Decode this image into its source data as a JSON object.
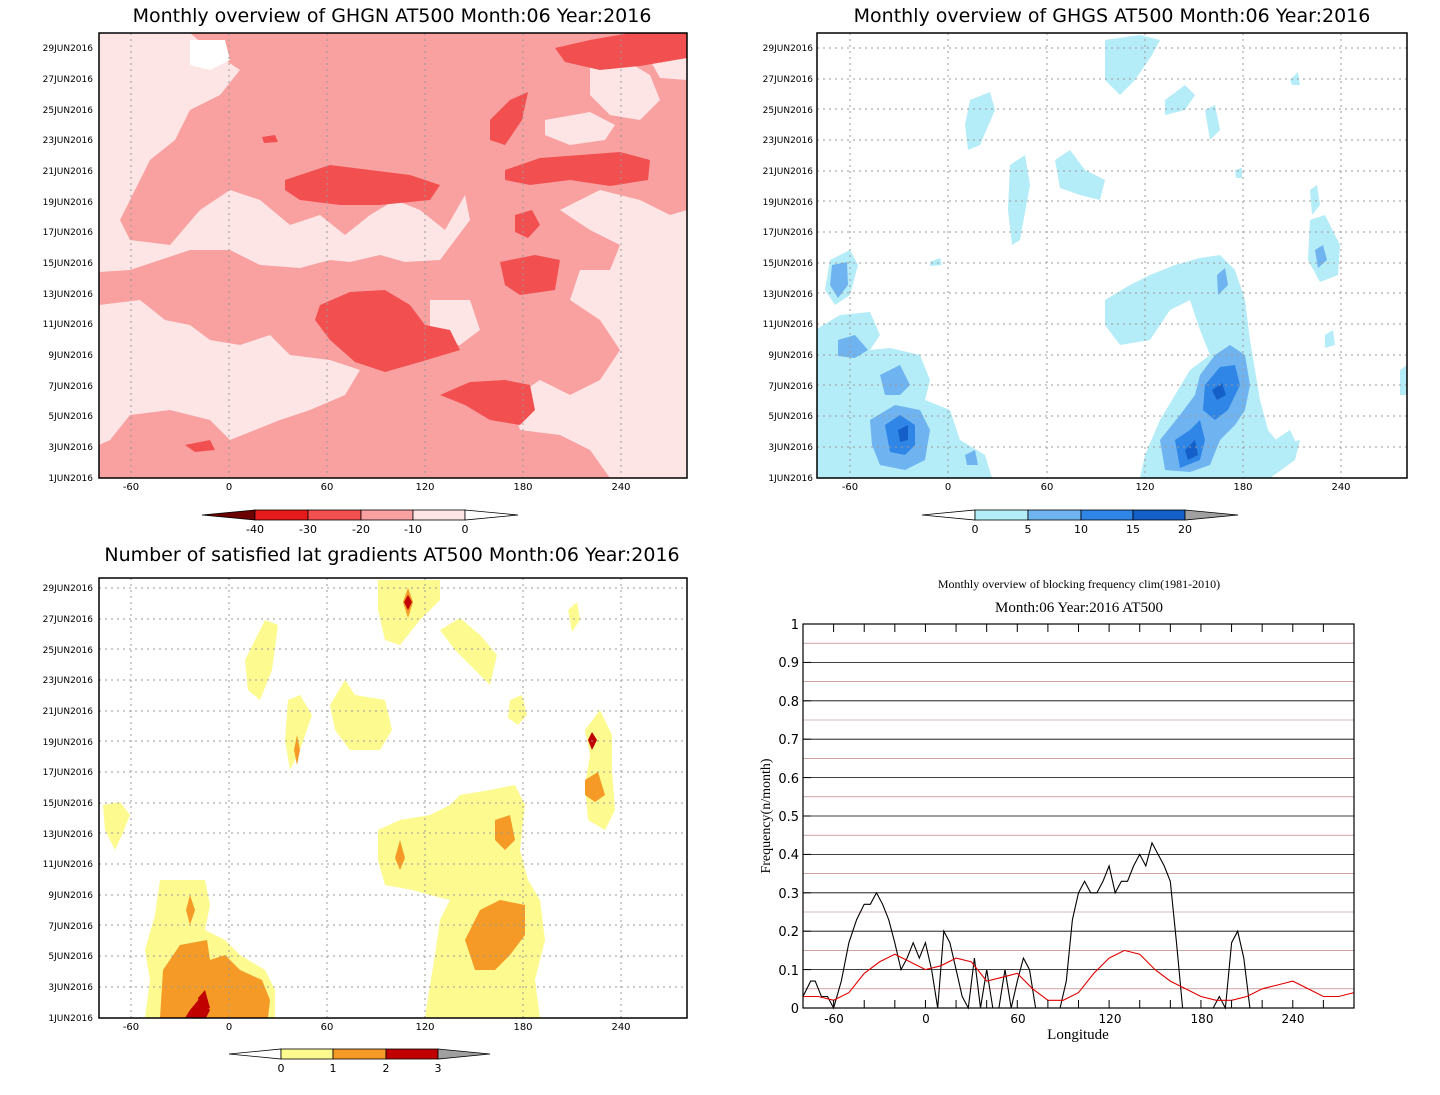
{
  "panels": {
    "ghgn": {
      "title": "Monthly overview of GHGN AT500 Month:06 Year:2016",
      "x_ticks": [
        "-60",
        "0",
        "60",
        "120",
        "180",
        "240"
      ],
      "y_ticks": [
        "1JUN2016",
        "3JUN2016",
        "5JUN2016",
        "7JUN2016",
        "9JUN2016",
        "11JUN2016",
        "13JUN2016",
        "15JUN2016",
        "17JUN2016",
        "19JUN2016",
        "21JUN2016",
        "23JUN2016",
        "25JUN2016",
        "27JUN2016",
        "29JUN2016"
      ],
      "colorbar": {
        "labels": [
          "-40",
          "-30",
          "-20",
          "-10",
          "0"
        ],
        "colors": [
          "#6b0000",
          "#e61a1a",
          "#f25050",
          "#f9a0a0",
          "#fde5e5"
        ]
      }
    },
    "ghgs": {
      "title": "Monthly overview of GHGS AT500 Month:06 Year:2016",
      "x_ticks": [
        "-60",
        "0",
        "60",
        "120",
        "180",
        "240"
      ],
      "y_ticks": [
        "1JUN2016",
        "3JUN2016",
        "5JUN2016",
        "7JUN2016",
        "9JUN2016",
        "11JUN2016",
        "13JUN2016",
        "15JUN2016",
        "17JUN2016",
        "19JUN2016",
        "21JUN2016",
        "23JUN2016",
        "25JUN2016",
        "27JUN2016",
        "29JUN2016"
      ],
      "colorbar": {
        "labels": [
          "0",
          "5",
          "10",
          "15",
          "20"
        ],
        "colors": [
          "#b4ecf8",
          "#6fb4f0",
          "#2f86e6",
          "#1560c8",
          "#a0a0a0"
        ]
      }
    },
    "gradients": {
      "title": "Number of satisfied lat gradients AT500 Month:06 Year:2016",
      "x_ticks": [
        "-60",
        "0",
        "60",
        "120",
        "180",
        "240"
      ],
      "y_ticks": [
        "1JUN2016",
        "3JUN2016",
        "5JUN2016",
        "7JUN2016",
        "9JUN2016",
        "11JUN2016",
        "13JUN2016",
        "15JUN2016",
        "17JUN2016",
        "19JUN2016",
        "21JUN2016",
        "23JUN2016",
        "25JUN2016",
        "27JUN2016",
        "29JUN2016"
      ],
      "colorbar": {
        "labels": [
          "0",
          "1",
          "2",
          "3"
        ],
        "colors": [
          "#fdfa90",
          "#f59a26",
          "#c00000",
          "#a0a0a0"
        ]
      }
    },
    "frequency": {
      "title": "Monthly overview of blocking frequency clim(1981-2010)",
      "subtitle": "Month:06 Year:2016  AT500",
      "xlabel": "Longitude",
      "ylabel": "Frequency(n/month)",
      "x_ticks": [
        "-60",
        "0",
        "60",
        "120",
        "180",
        "240"
      ],
      "y_ticks": [
        "0",
        "0.1",
        "0.2",
        "0.3",
        "0.4",
        "0.5",
        "0.6",
        "0.7",
        "0.8",
        "0.9",
        "1"
      ]
    }
  },
  "chart_data": [
    {
      "type": "heatmap",
      "title": "Monthly overview of GHGN AT500 Month:06 Year:2016",
      "x_range": [
        -80,
        280
      ],
      "y_range": [
        "1JUN2016",
        "30JUN2016"
      ],
      "levels": [
        -40,
        -30,
        -20,
        -10,
        0
      ],
      "colors": [
        "#6b0000",
        "#e61a1a",
        "#f25050",
        "#f9a0a0",
        "#fde5e5"
      ]
    },
    {
      "type": "heatmap",
      "title": "Monthly overview of GHGS AT500 Month:06 Year:2016",
      "x_range": [
        -80,
        280
      ],
      "y_range": [
        "1JUN2016",
        "30JUN2016"
      ],
      "levels": [
        0,
        5,
        10,
        15,
        20
      ],
      "colors": [
        "#b4ecf8",
        "#6fb4f0",
        "#2f86e6",
        "#1560c8",
        "#a0a0a0"
      ]
    },
    {
      "type": "heatmap",
      "title": "Number of satisfied lat gradients AT500 Month:06 Year:2016",
      "x_range": [
        -80,
        280
      ],
      "y_range": [
        "1JUN2016",
        "30JUN2016"
      ],
      "levels": [
        0,
        1,
        2,
        3
      ],
      "colors": [
        "#fdfa90",
        "#f59a26",
        "#c00000",
        "#a0a0a0"
      ]
    },
    {
      "type": "line",
      "title": "Monthly overview of blocking frequency clim(1981-2010)",
      "subtitle": "Month:06 Year:2016  AT500",
      "xlabel": "Longitude",
      "ylabel": "Frequency(n/month)",
      "xlim": [
        -80,
        280
      ],
      "ylim": [
        0,
        1
      ],
      "series": [
        {
          "color": "#000000",
          "x": [
            -80,
            -75,
            -72,
            -68,
            -64,
            -60,
            -55,
            -50,
            -45,
            -40,
            -36,
            -32,
            -28,
            -24,
            -20,
            -16,
            -12,
            -8,
            -4,
            0,
            4,
            8,
            12,
            16,
            20,
            24,
            28,
            32,
            36,
            40,
            44,
            48,
            52,
            56,
            60,
            64,
            68,
            72,
            76,
            80,
            84,
            88,
            92,
            96,
            100,
            104,
            108,
            112,
            116,
            120,
            124,
            128,
            132,
            136,
            140,
            144,
            148,
            152,
            156,
            160,
            164,
            168,
            172,
            176,
            180,
            184,
            188,
            192,
            196,
            200,
            204,
            208,
            212,
            216,
            220,
            224,
            228,
            232,
            236,
            240,
            244,
            248,
            252,
            256,
            260,
            264,
            268,
            272,
            276,
            280
          ],
          "y": [
            0.03,
            0.07,
            0.07,
            0.03,
            0.03,
            0.0,
            0.07,
            0.17,
            0.23,
            0.27,
            0.27,
            0.3,
            0.27,
            0.23,
            0.17,
            0.1,
            0.13,
            0.17,
            0.13,
            0.17,
            0.1,
            0.0,
            0.2,
            0.17,
            0.1,
            0.03,
            0.0,
            0.13,
            0.0,
            0.1,
            0.0,
            0.0,
            0.1,
            0.0,
            0.07,
            0.13,
            0.1,
            0.0,
            0.0,
            0.0,
            0.0,
            0.0,
            0.07,
            0.23,
            0.3,
            0.33,
            0.3,
            0.3,
            0.33,
            0.37,
            0.3,
            0.33,
            0.33,
            0.37,
            0.4,
            0.37,
            0.43,
            0.4,
            0.37,
            0.33,
            0.17,
            0.0,
            0.0,
            0.0,
            0.0,
            0.0,
            0.0,
            0.03,
            0.0,
            0.17,
            0.2,
            0.13,
            0.0,
            0.0,
            0.0,
            0.0,
            0.0,
            0.0,
            0.0,
            0.0,
            0.0,
            0.0,
            0.0,
            0.0,
            0.0,
            0.0,
            0.0,
            0.0,
            0.0,
            0.0
          ]
        },
        {
          "color": "#e00000",
          "x": [
            -80,
            -70,
            -60,
            -50,
            -40,
            -30,
            -20,
            -10,
            0,
            10,
            20,
            30,
            40,
            50,
            60,
            70,
            80,
            90,
            100,
            110,
            120,
            130,
            140,
            150,
            160,
            170,
            180,
            190,
            200,
            210,
            220,
            230,
            240,
            250,
            260,
            270,
            280
          ],
          "y": [
            0.03,
            0.03,
            0.02,
            0.04,
            0.09,
            0.12,
            0.14,
            0.12,
            0.1,
            0.11,
            0.13,
            0.12,
            0.07,
            0.08,
            0.09,
            0.05,
            0.02,
            0.02,
            0.04,
            0.09,
            0.13,
            0.15,
            0.14,
            0.1,
            0.07,
            0.05,
            0.03,
            0.02,
            0.02,
            0.03,
            0.05,
            0.06,
            0.07,
            0.05,
            0.03,
            0.03,
            0.04
          ]
        }
      ]
    }
  ]
}
